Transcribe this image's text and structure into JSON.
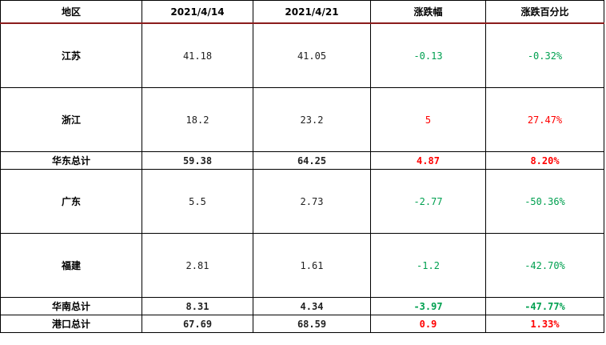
{
  "colors": {
    "up": "#ff0000",
    "down": "#00a050",
    "header_rule": "#8b1c1c"
  },
  "table": {
    "headers": [
      "地区",
      "2021/4/14",
      "2021/4/21",
      "涨跌幅",
      "涨跌百分比"
    ],
    "rows": [
      {
        "type": "detail",
        "region": "江苏",
        "d1": "41.18",
        "d2": "41.05",
        "change": "-0.13",
        "pct": "-0.32%",
        "trend": "down"
      },
      {
        "type": "detail",
        "region": "浙江",
        "d1": "18.2",
        "d2": "23.2",
        "change": "5",
        "pct": "27.47%",
        "trend": "up"
      },
      {
        "type": "total",
        "region": "华东总计",
        "d1": "59.38",
        "d2": "64.25",
        "change": "4.87",
        "pct": "8.20%",
        "trend": "up"
      },
      {
        "type": "detail",
        "region": "广东",
        "d1": "5.5",
        "d2": "2.73",
        "change": "-2.77",
        "pct": "-50.36%",
        "trend": "down"
      },
      {
        "type": "detail",
        "region": "福建",
        "d1": "2.81",
        "d2": "1.61",
        "change": "-1.2",
        "pct": "-42.70%",
        "trend": "down"
      },
      {
        "type": "total",
        "region": "华南总计",
        "d1": "8.31",
        "d2": "4.34",
        "change": "-3.97",
        "pct": "-47.77%",
        "trend": "down"
      },
      {
        "type": "total",
        "region": "港口总计",
        "d1": "67.69",
        "d2": "68.59",
        "change": "0.9",
        "pct": "1.33%",
        "trend": "up"
      }
    ]
  }
}
